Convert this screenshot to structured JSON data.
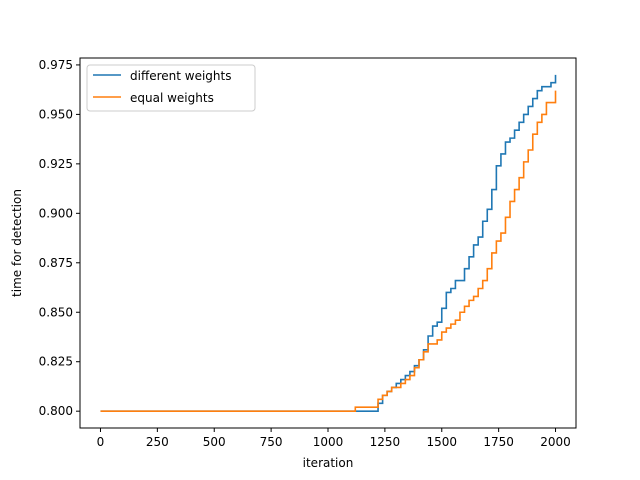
{
  "chart_data": {
    "type": "line",
    "title": "",
    "xlabel": "iteration",
    "ylabel": "time for detection",
    "xlim": [
      -90,
      2090
    ],
    "ylim": [
      0.7915,
      0.9785
    ],
    "xticks": [
      0,
      250,
      500,
      750,
      1000,
      1250,
      1500,
      1750,
      2000
    ],
    "yticks": [
      0.8,
      0.825,
      0.85,
      0.875,
      0.9,
      0.925,
      0.95,
      0.975
    ],
    "xtick_labels": [
      "0",
      "250",
      "500",
      "750",
      "1000",
      "1250",
      "1500",
      "1750",
      "2000"
    ],
    "ytick_labels": [
      "0.800",
      "0.825",
      "0.850",
      "0.875",
      "0.900",
      "0.925",
      "0.950",
      "0.975"
    ],
    "grid": false,
    "legend_position": "upper-left",
    "step": true,
    "series": [
      {
        "name": "different weights",
        "color": "#1f77b4",
        "x": [
          0,
          1130,
          1200,
          1220,
          1240,
          1260,
          1280,
          1300,
          1320,
          1340,
          1360,
          1380,
          1400,
          1420,
          1440,
          1460,
          1480,
          1500,
          1520,
          1540,
          1560,
          1580,
          1600,
          1620,
          1640,
          1660,
          1680,
          1700,
          1720,
          1740,
          1760,
          1780,
          1800,
          1820,
          1840,
          1860,
          1880,
          1900,
          1920,
          1940,
          1960,
          1980,
          2000
        ],
        "y": [
          0.8,
          0.8,
          0.8,
          0.804,
          0.808,
          0.81,
          0.812,
          0.814,
          0.816,
          0.818,
          0.82,
          0.823,
          0.826,
          0.831,
          0.838,
          0.843,
          0.845,
          0.852,
          0.86,
          0.862,
          0.866,
          0.866,
          0.872,
          0.878,
          0.884,
          0.888,
          0.896,
          0.902,
          0.912,
          0.924,
          0.93,
          0.936,
          0.938,
          0.942,
          0.946,
          0.95,
          0.954,
          0.958,
          0.962,
          0.964,
          0.964,
          0.966,
          0.97
        ]
      },
      {
        "name": "equal weights",
        "color": "#ff7f0e",
        "x": [
          0,
          1100,
          1120,
          1180,
          1220,
          1240,
          1260,
          1280,
          1300,
          1320,
          1340,
          1360,
          1380,
          1400,
          1420,
          1440,
          1460,
          1480,
          1500,
          1520,
          1540,
          1560,
          1580,
          1600,
          1620,
          1640,
          1660,
          1680,
          1700,
          1720,
          1740,
          1760,
          1780,
          1800,
          1820,
          1840,
          1860,
          1880,
          1900,
          1920,
          1940,
          1960,
          1980,
          2000
        ],
        "y": [
          0.8,
          0.8,
          0.802,
          0.802,
          0.806,
          0.808,
          0.81,
          0.812,
          0.812,
          0.814,
          0.816,
          0.818,
          0.822,
          0.826,
          0.83,
          0.834,
          0.834,
          0.836,
          0.84,
          0.842,
          0.844,
          0.846,
          0.85,
          0.853,
          0.856,
          0.858,
          0.862,
          0.866,
          0.872,
          0.88,
          0.886,
          0.89,
          0.898,
          0.906,
          0.912,
          0.918,
          0.926,
          0.932,
          0.94,
          0.946,
          0.95,
          0.956,
          0.956,
          0.962
        ]
      }
    ]
  }
}
